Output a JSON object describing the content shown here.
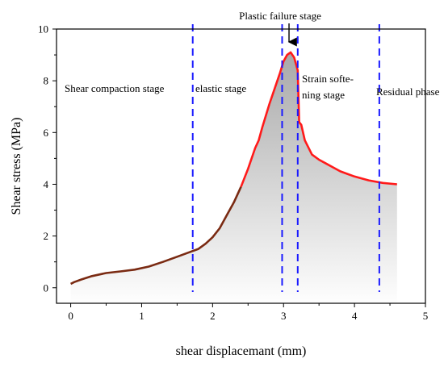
{
  "chart_data": {
    "type": "line",
    "title": "",
    "xlabel": "shear displacemant (mm)",
    "ylabel": "Shear stress (MPa)",
    "xlim": [
      -0.2,
      5
    ],
    "ylim": [
      -0.6,
      10
    ],
    "xticks": [
      0,
      1,
      2,
      3,
      4,
      5
    ],
    "xtick_labels": [
      "0",
      "1",
      "2",
      "3",
      "4",
      "5"
    ],
    "yticks": [
      0,
      2,
      4,
      6,
      8,
      10
    ],
    "ytick_labels": [
      "0",
      "2",
      "4",
      "6",
      "8",
      "10"
    ],
    "grid": false,
    "fill_under_curve": "gray gradient",
    "curve_colors": {
      "pre_peak": "#7a2a12",
      "post_peak": "#ff1a1a"
    },
    "color_change_at_x": 2.35,
    "series": [
      {
        "x": [
          0.0,
          0.05,
          0.15,
          0.3,
          0.5,
          0.7,
          0.9,
          1.1,
          1.3,
          1.5,
          1.7,
          1.8,
          1.9,
          2.0,
          2.1,
          2.2,
          2.3,
          2.4,
          2.5,
          2.6,
          2.65,
          2.7,
          2.8,
          2.9,
          2.95,
          3.0,
          3.05,
          3.1,
          3.15,
          3.2,
          3.22,
          3.25,
          3.3,
          3.4,
          3.5,
          3.6,
          3.7,
          3.8,
          3.9,
          4.0,
          4.2,
          4.4,
          4.6
        ],
        "y": [
          0.15,
          0.22,
          0.32,
          0.45,
          0.57,
          0.63,
          0.7,
          0.82,
          1.0,
          1.2,
          1.4,
          1.5,
          1.7,
          1.95,
          2.3,
          2.8,
          3.3,
          3.9,
          4.6,
          5.4,
          5.7,
          6.2,
          7.1,
          7.9,
          8.3,
          8.75,
          9.0,
          9.1,
          8.9,
          8.4,
          6.4,
          6.3,
          5.7,
          5.15,
          4.95,
          4.8,
          4.65,
          4.5,
          4.4,
          4.3,
          4.15,
          4.05,
          4.0
        ]
      }
    ],
    "stage_boundaries_x": [
      1.72,
      2.98,
      3.2,
      4.35
    ],
    "boundary_style": "blue dashed",
    "stage_labels": {
      "shear_compaction": "Shear compaction stage",
      "elastic": "elastic stage",
      "plastic_failure": "Plastic failure stage",
      "strain_softening_line1": "Strain softe-",
      "strain_softening_line2": "ning stage",
      "residual": "Residual phase"
    },
    "peak_arrow_x": 3.1
  }
}
